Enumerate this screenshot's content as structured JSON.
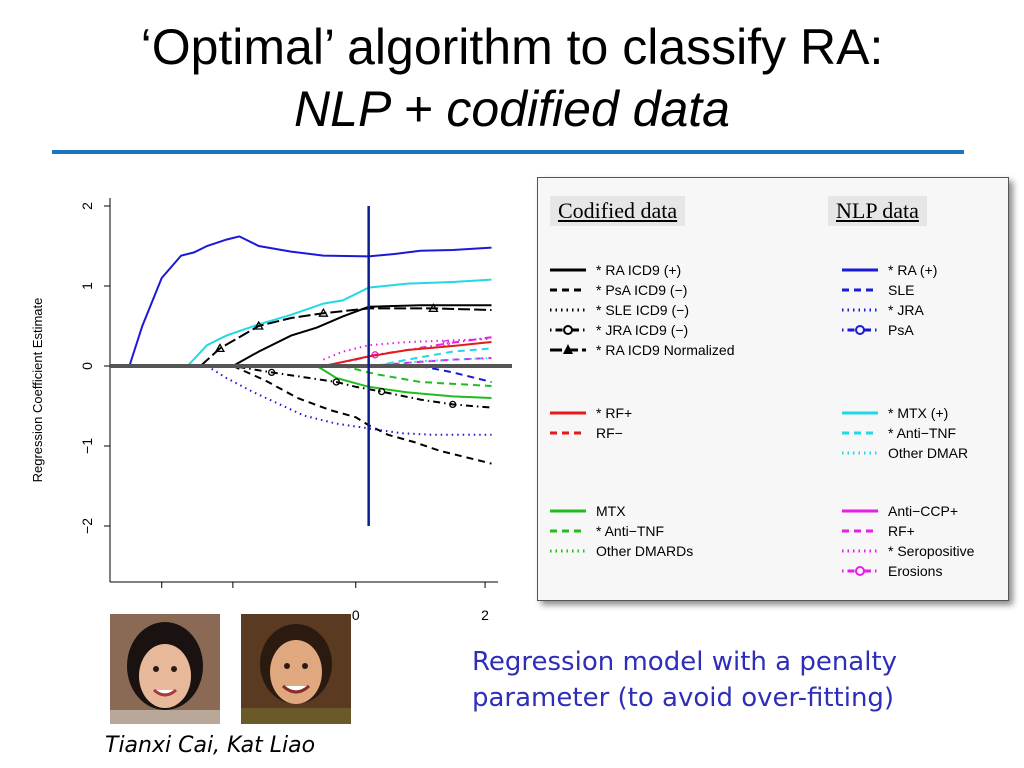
{
  "slide": {
    "title_line1": "‘Optimal’ algorithm to classify RA:",
    "title_line2": "NLP + codified data",
    "caption": "Regression model with a penalty parameter (to avoid over-fitting)",
    "caption_line1": "Regression model with a penalty",
    "caption_line2": "parameter (to avoid over-fitting)",
    "people": "Tianxi Cai, Kat Liao",
    "colors": {
      "accent_rule": "#1c75bc",
      "caption_text": "#2e2eb8"
    },
    "photo_icons": [
      "person-photo-icon",
      "person-photo-icon"
    ]
  },
  "chart_data": {
    "type": "line",
    "ylabel": "Regression Coefficient Estimate",
    "xlabel": "",
    "ylim": [
      -2.7,
      2.1
    ],
    "xlim": [
      -3.8,
      2.2
    ],
    "yticks": [
      -2,
      -1,
      0,
      1,
      2
    ],
    "ytick_labels": [
      "−2",
      "−1",
      "0",
      "1",
      "2"
    ],
    "xticks": [
      -3.0,
      -1.9,
      0,
      2
    ],
    "xtick_labels": [
      "",
      "",
      "0",
      "2"
    ],
    "vertical_line": {
      "x": 0.2,
      "y0": -2.0,
      "y1": 2.0,
      "color": "#0a1f8f"
    },
    "zero_line_color": "#555555",
    "grid": false,
    "legend": {
      "placement": "right",
      "groups": [
        {
          "header": "Codified data",
          "items": [
            {
              "label": "* RA  ICD9 (+)",
              "color": "#000000",
              "style": "solid",
              "marker": ""
            },
            {
              "label": "* PsA ICD9 (−)",
              "color": "#000000",
              "style": "dashed",
              "marker": ""
            },
            {
              "label": "* SLE ICD9 (−)",
              "color": "#000000",
              "style": "dotted",
              "marker": ""
            },
            {
              "label": "* JRA ICD9 (−)",
              "color": "#000000",
              "style": "dotdash",
              "marker": "circle"
            },
            {
              "label": "* RA ICD9 Normalized",
              "color": "#000000",
              "style": "longdash",
              "marker": "triangle"
            },
            {
              "label": "* RF+",
              "color": "#e31a1c",
              "style": "solid",
              "marker": ""
            },
            {
              "label": "RF−",
              "color": "#e31a1c",
              "style": "dashed",
              "marker": ""
            },
            {
              "label": "MTX",
              "color": "#22bb22",
              "style": "solid",
              "marker": ""
            },
            {
              "label": "* Anti−TNF",
              "color": "#22bb22",
              "style": "dashed",
              "marker": ""
            },
            {
              "label": "Other DMARDs",
              "color": "#22bb22",
              "style": "dotted",
              "marker": ""
            }
          ]
        },
        {
          "header": "NLP data",
          "items": [
            {
              "label": "* RA (+)",
              "color": "#1a1ad6",
              "style": "solid",
              "marker": ""
            },
            {
              "label": "SLE",
              "color": "#1a1ad6",
              "style": "dashed",
              "marker": ""
            },
            {
              "label": "* JRA",
              "color": "#1a1ad6",
              "style": "dotted",
              "marker": ""
            },
            {
              "label": "PsA",
              "color": "#1a1ad6",
              "style": "dotdash",
              "marker": "circle"
            },
            {
              "label": "* MTX (+)",
              "color": "#22d8e6",
              "style": "solid",
              "marker": ""
            },
            {
              "label": "* Anti−TNF",
              "color": "#22d8e6",
              "style": "dashed",
              "marker": ""
            },
            {
              "label": "Other DMAR",
              "color": "#22d8e6",
              "style": "dotted",
              "marker": ""
            },
            {
              "label": "Anti−CCP+",
              "color": "#e61ee6",
              "style": "solid",
              "marker": ""
            },
            {
              "label": "RF+",
              "color": "#e61ee6",
              "style": "dashed",
              "marker": ""
            },
            {
              "label": "* Seropositive",
              "color": "#e61ee6",
              "style": "dotted",
              "marker": ""
            },
            {
              "label": "Erosions",
              "color": "#e61ee6",
              "style": "dotdash",
              "marker": "circle"
            }
          ]
        }
      ]
    },
    "series": [
      {
        "color": "#1a1ad6",
        "style": "solid",
        "marker": "",
        "points": [
          [
            -3.5,
            0
          ],
          [
            -3.3,
            0.5
          ],
          [
            -3.0,
            1.1
          ],
          [
            -2.7,
            1.38
          ],
          [
            -2.5,
            1.42
          ],
          [
            -2.3,
            1.5
          ],
          [
            -2.0,
            1.58
          ],
          [
            -1.8,
            1.62
          ],
          [
            -1.5,
            1.5
          ],
          [
            -1.0,
            1.43
          ],
          [
            -0.5,
            1.38
          ],
          [
            0.2,
            1.37
          ],
          [
            0.6,
            1.4
          ],
          [
            1.0,
            1.44
          ],
          [
            1.5,
            1.45
          ],
          [
            2.1,
            1.48
          ]
        ]
      },
      {
        "color": "#22d8e6",
        "style": "solid",
        "marker": "",
        "points": [
          [
            -2.6,
            0
          ],
          [
            -2.3,
            0.26
          ],
          [
            -2.0,
            0.38
          ],
          [
            -1.5,
            0.52
          ],
          [
            -1.0,
            0.64
          ],
          [
            -0.5,
            0.78
          ],
          [
            -0.2,
            0.82
          ],
          [
            0.2,
            0.98
          ],
          [
            0.8,
            1.03
          ],
          [
            1.5,
            1.05
          ],
          [
            2.1,
            1.08
          ]
        ]
      },
      {
        "color": "#000000",
        "style": "solid",
        "marker": "",
        "points": [
          [
            -1.9,
            0
          ],
          [
            -1.5,
            0.18
          ],
          [
            -1.0,
            0.38
          ],
          [
            -0.6,
            0.48
          ],
          [
            -0.2,
            0.62
          ],
          [
            0.2,
            0.74
          ],
          [
            1.0,
            0.76
          ],
          [
            2.1,
            0.76
          ]
        ]
      },
      {
        "color": "#000000",
        "style": "longdash",
        "marker": "triangle",
        "points": [
          [
            -2.4,
            0
          ],
          [
            -2.1,
            0.22
          ],
          [
            -1.8,
            0.36
          ],
          [
            -1.5,
            0.5
          ],
          [
            -1.0,
            0.6
          ],
          [
            -0.5,
            0.66
          ],
          [
            0.2,
            0.72
          ],
          [
            1.2,
            0.72
          ],
          [
            2.1,
            0.7
          ]
        ]
      },
      {
        "color": "#e61ee6",
        "style": "dotted",
        "marker": "",
        "points": [
          [
            -0.5,
            0.08
          ],
          [
            -0.2,
            0.18
          ],
          [
            0.2,
            0.26
          ],
          [
            0.8,
            0.3
          ],
          [
            1.5,
            0.32
          ],
          [
            2.1,
            0.34
          ]
        ]
      },
      {
        "color": "#e61ee6",
        "style": "dashed",
        "marker": "",
        "points": [
          [
            0.2,
            0.0
          ],
          [
            0.8,
            0.04
          ],
          [
            1.5,
            0.08
          ],
          [
            2.1,
            0.1
          ]
        ]
      },
      {
        "color": "#e61ee6",
        "style": "dotdash",
        "marker": "circle",
        "points": [
          [
            -0.1,
            0.06
          ],
          [
            0.3,
            0.14
          ],
          [
            0.8,
            0.2
          ],
          [
            1.4,
            0.28
          ],
          [
            2.1,
            0.36
          ]
        ]
      },
      {
        "color": "#22d8e6",
        "style": "dashed",
        "marker": "",
        "points": [
          [
            0.3,
            0.0
          ],
          [
            0.8,
            0.08
          ],
          [
            1.5,
            0.18
          ],
          [
            2.1,
            0.22
          ]
        ]
      },
      {
        "color": "#22d8e6",
        "style": "dotted",
        "marker": "",
        "points": [
          [
            0.4,
            0.0
          ],
          [
            1.0,
            0.06
          ],
          [
            2.1,
            0.1
          ]
        ]
      },
      {
        "color": "#e31a1c",
        "style": "solid",
        "marker": "",
        "points": [
          [
            -0.5,
            0.0
          ],
          [
            -0.2,
            0.05
          ],
          [
            0.2,
            0.12
          ],
          [
            0.8,
            0.2
          ],
          [
            1.5,
            0.25
          ],
          [
            2.1,
            0.3
          ]
        ]
      },
      {
        "color": "#1a1ad6",
        "style": "dashed",
        "marker": "",
        "points": [
          [
            1.0,
            0.0
          ],
          [
            1.5,
            -0.08
          ],
          [
            2.1,
            -0.2
          ]
        ]
      },
      {
        "color": "#22bb22",
        "style": "solid",
        "marker": "",
        "points": [
          [
            -0.6,
            0.0
          ],
          [
            -0.3,
            -0.15
          ],
          [
            0.2,
            -0.26
          ],
          [
            0.8,
            -0.33
          ],
          [
            1.5,
            -0.38
          ],
          [
            2.1,
            -0.4
          ]
        ]
      },
      {
        "color": "#22bb22",
        "style": "dashed",
        "marker": "",
        "points": [
          [
            -0.2,
            0.0
          ],
          [
            0.3,
            -0.1
          ],
          [
            1.0,
            -0.2
          ],
          [
            2.1,
            -0.25
          ]
        ]
      },
      {
        "color": "#000000",
        "style": "dotdash",
        "marker": "circle",
        "points": [
          [
            -1.9,
            0.0
          ],
          [
            -1.3,
            -0.08
          ],
          [
            -0.8,
            -0.14
          ],
          [
            -0.3,
            -0.2
          ],
          [
            0.0,
            -0.26
          ],
          [
            0.4,
            -0.32
          ],
          [
            1.0,
            -0.42
          ],
          [
            1.5,
            -0.48
          ],
          [
            2.1,
            -0.52
          ]
        ]
      },
      {
        "color": "#000000",
        "style": "dashed",
        "marker": "",
        "points": [
          [
            -1.9,
            0.0
          ],
          [
            -1.4,
            -0.18
          ],
          [
            -0.9,
            -0.4
          ],
          [
            -0.4,
            -0.55
          ],
          [
            0.0,
            -0.64
          ],
          [
            0.2,
            -0.74
          ],
          [
            0.5,
            -0.86
          ],
          [
            0.9,
            -0.95
          ],
          [
            1.3,
            -1.06
          ],
          [
            1.7,
            -1.14
          ],
          [
            2.1,
            -1.22
          ]
        ]
      },
      {
        "color": "#1a1ad6",
        "style": "dotted",
        "marker": "",
        "points": [
          [
            -2.3,
            0.0
          ],
          [
            -2.0,
            -0.15
          ],
          [
            -1.6,
            -0.32
          ],
          [
            -1.2,
            -0.47
          ],
          [
            -0.8,
            -0.62
          ],
          [
            -0.3,
            -0.72
          ],
          [
            0.2,
            -0.78
          ],
          [
            0.7,
            -0.84
          ],
          [
            1.2,
            -0.86
          ],
          [
            2.1,
            -0.86
          ]
        ]
      }
    ]
  }
}
